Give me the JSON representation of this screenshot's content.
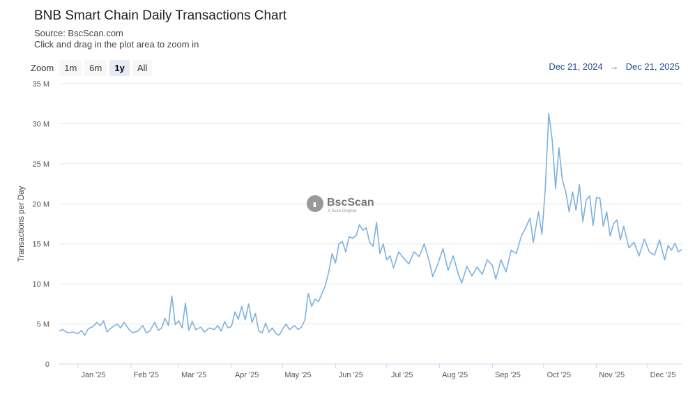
{
  "header": {
    "title": "BNB Smart Chain Daily Transactions Chart",
    "source": "Source: BscScan.com",
    "hint": "Click and drag in the plot area to zoom in"
  },
  "zoom": {
    "label": "Zoom",
    "buttons": [
      "1m",
      "6m",
      "1y",
      "All"
    ],
    "active": "1y"
  },
  "range": {
    "from": "Dec 21, 2024",
    "arrow": "→",
    "to": "Dec 21, 2025"
  },
  "watermark": {
    "name": "BscScan",
    "tagline": "A Scan Original"
  },
  "colors": {
    "line": "#7cb1e0",
    "grid": "#e6e6e6",
    "axis": "#ccd6eb",
    "range_text": "#1f4b8f"
  },
  "chart_data": {
    "type": "line",
    "title": "BNB Smart Chain Daily Transactions Chart",
    "xlabel": "",
    "ylabel": "Transactions per Day",
    "ylim": [
      0,
      35000000
    ],
    "x_range": [
      "2024-12-21",
      "2025-12-21"
    ],
    "grid": true,
    "legend": "none",
    "yticks": [
      {
        "value": 0,
        "label": "0"
      },
      {
        "value": 5000000,
        "label": "5 M"
      },
      {
        "value": 10000000,
        "label": "10 M"
      },
      {
        "value": 15000000,
        "label": "15 M"
      },
      {
        "value": 20000000,
        "label": "20 M"
      },
      {
        "value": 25000000,
        "label": "25 M"
      },
      {
        "value": 30000000,
        "label": "30 M"
      },
      {
        "value": 35000000,
        "label": "35 M"
      }
    ],
    "xticks": [
      {
        "date": "2025-01-01",
        "label": "Jan '25"
      },
      {
        "date": "2025-02-01",
        "label": "Feb '25"
      },
      {
        "date": "2025-03-01",
        "label": "Mar '25"
      },
      {
        "date": "2025-04-01",
        "label": "Apr '25"
      },
      {
        "date": "2025-05-01",
        "label": "May '25"
      },
      {
        "date": "2025-06-01",
        "label": "Jun '25"
      },
      {
        "date": "2025-07-01",
        "label": "Jul '25"
      },
      {
        "date": "2025-08-01",
        "label": "Aug '25"
      },
      {
        "date": "2025-09-01",
        "label": "Sep '25"
      },
      {
        "date": "2025-10-01",
        "label": "Oct '25"
      },
      {
        "date": "2025-11-01",
        "label": "Nov '25"
      },
      {
        "date": "2025-12-01",
        "label": "Dec '25"
      }
    ],
    "series": [
      {
        "values": [
          [
            "2024-12-21",
            4100000
          ],
          [
            "2024-12-23",
            4300000
          ],
          [
            "2024-12-26",
            3900000
          ],
          [
            "2024-12-29",
            4000000
          ],
          [
            "2025-01-01",
            3800000
          ],
          [
            "2025-01-03",
            4200000
          ],
          [
            "2025-01-05",
            3600000
          ],
          [
            "2025-01-07",
            4400000
          ],
          [
            "2025-01-10",
            4700000
          ],
          [
            "2025-01-12",
            5200000
          ],
          [
            "2025-01-14",
            4800000
          ],
          [
            "2025-01-16",
            5400000
          ],
          [
            "2025-01-18",
            4000000
          ],
          [
            "2025-01-21",
            4600000
          ],
          [
            "2025-01-24",
            5000000
          ],
          [
            "2025-01-26",
            4500000
          ],
          [
            "2025-01-28",
            5200000
          ],
          [
            "2025-01-31",
            4300000
          ],
          [
            "2025-02-02",
            3900000
          ],
          [
            "2025-02-05",
            4100000
          ],
          [
            "2025-02-08",
            4800000
          ],
          [
            "2025-02-10",
            3900000
          ],
          [
            "2025-02-12",
            4100000
          ],
          [
            "2025-02-15",
            5200000
          ],
          [
            "2025-02-17",
            4200000
          ],
          [
            "2025-02-19",
            4500000
          ],
          [
            "2025-02-21",
            5700000
          ],
          [
            "2025-02-23",
            4800000
          ],
          [
            "2025-02-25",
            8500000
          ],
          [
            "2025-02-27",
            4900000
          ],
          [
            "2025-03-01",
            5400000
          ],
          [
            "2025-03-03",
            4500000
          ],
          [
            "2025-03-05",
            7600000
          ],
          [
            "2025-03-07",
            4200000
          ],
          [
            "2025-03-09",
            5300000
          ],
          [
            "2025-03-11",
            4300000
          ],
          [
            "2025-03-14",
            4600000
          ],
          [
            "2025-03-16",
            4000000
          ],
          [
            "2025-03-19",
            4500000
          ],
          [
            "2025-03-22",
            4300000
          ],
          [
            "2025-03-24",
            4800000
          ],
          [
            "2025-03-26",
            4100000
          ],
          [
            "2025-03-28",
            5300000
          ],
          [
            "2025-03-30",
            4500000
          ],
          [
            "2025-04-01",
            4700000
          ],
          [
            "2025-04-03",
            6500000
          ],
          [
            "2025-04-05",
            5600000
          ],
          [
            "2025-04-07",
            7200000
          ],
          [
            "2025-04-09",
            5500000
          ],
          [
            "2025-04-11",
            7500000
          ],
          [
            "2025-04-13",
            5200000
          ],
          [
            "2025-04-15",
            6300000
          ],
          [
            "2025-04-17",
            4100000
          ],
          [
            "2025-04-19",
            3900000
          ],
          [
            "2025-04-21",
            5100000
          ],
          [
            "2025-04-23",
            4000000
          ],
          [
            "2025-04-25",
            4500000
          ],
          [
            "2025-04-27",
            3800000
          ],
          [
            "2025-04-29",
            3600000
          ],
          [
            "2025-05-01",
            4400000
          ],
          [
            "2025-05-03",
            5000000
          ],
          [
            "2025-05-05",
            4300000
          ],
          [
            "2025-05-08",
            4800000
          ],
          [
            "2025-05-10",
            4300000
          ],
          [
            "2025-05-12",
            4600000
          ],
          [
            "2025-05-14",
            5500000
          ],
          [
            "2025-05-16",
            8800000
          ],
          [
            "2025-05-18",
            7200000
          ],
          [
            "2025-05-20",
            8100000
          ],
          [
            "2025-05-22",
            7800000
          ],
          [
            "2025-05-24",
            8800000
          ],
          [
            "2025-05-26",
            9800000
          ],
          [
            "2025-05-28",
            11500000
          ],
          [
            "2025-05-30",
            13800000
          ],
          [
            "2025-06-01",
            12600000
          ],
          [
            "2025-06-03",
            15000000
          ],
          [
            "2025-06-05",
            15300000
          ],
          [
            "2025-06-07",
            14000000
          ],
          [
            "2025-06-09",
            15900000
          ],
          [
            "2025-06-11",
            15700000
          ],
          [
            "2025-06-13",
            16000000
          ],
          [
            "2025-06-15",
            17400000
          ],
          [
            "2025-06-17",
            16700000
          ],
          [
            "2025-06-19",
            17000000
          ],
          [
            "2025-06-21",
            15200000
          ],
          [
            "2025-06-23",
            14700000
          ],
          [
            "2025-06-25",
            17700000
          ],
          [
            "2025-06-27",
            13800000
          ],
          [
            "2025-06-29",
            15000000
          ],
          [
            "2025-07-01",
            13000000
          ],
          [
            "2025-07-03",
            13500000
          ],
          [
            "2025-07-05",
            12000000
          ],
          [
            "2025-07-08",
            14000000
          ],
          [
            "2025-07-11",
            13200000
          ],
          [
            "2025-07-14",
            12500000
          ],
          [
            "2025-07-17",
            14000000
          ],
          [
            "2025-07-20",
            13400000
          ],
          [
            "2025-07-23",
            15000000
          ],
          [
            "2025-07-26",
            12800000
          ],
          [
            "2025-07-28",
            10900000
          ],
          [
            "2025-07-31",
            12500000
          ],
          [
            "2025-08-03",
            14400000
          ],
          [
            "2025-08-06",
            11700000
          ],
          [
            "2025-08-09",
            13500000
          ],
          [
            "2025-08-12",
            11200000
          ],
          [
            "2025-08-14",
            10100000
          ],
          [
            "2025-08-17",
            12200000
          ],
          [
            "2025-08-20",
            11000000
          ],
          [
            "2025-08-23",
            12100000
          ],
          [
            "2025-08-26",
            11200000
          ],
          [
            "2025-08-29",
            13000000
          ],
          [
            "2025-09-01",
            12300000
          ],
          [
            "2025-09-03",
            10600000
          ],
          [
            "2025-09-06",
            13000000
          ],
          [
            "2025-09-09",
            11500000
          ],
          [
            "2025-09-12",
            14200000
          ],
          [
            "2025-09-15",
            13800000
          ],
          [
            "2025-09-18",
            16000000
          ],
          [
            "2025-09-20",
            16800000
          ],
          [
            "2025-09-23",
            18200000
          ],
          [
            "2025-09-25",
            15200000
          ],
          [
            "2025-09-28",
            19000000
          ],
          [
            "2025-09-30",
            16200000
          ],
          [
            "2025-10-02",
            22000000
          ],
          [
            "2025-10-04",
            31300000
          ],
          [
            "2025-10-06",
            28000000
          ],
          [
            "2025-10-08",
            21900000
          ],
          [
            "2025-10-10",
            27000000
          ],
          [
            "2025-10-12",
            23000000
          ],
          [
            "2025-10-14",
            21500000
          ],
          [
            "2025-10-16",
            19000000
          ],
          [
            "2025-10-18",
            21500000
          ],
          [
            "2025-10-20",
            19200000
          ],
          [
            "2025-10-22",
            22400000
          ],
          [
            "2025-10-24",
            17800000
          ],
          [
            "2025-10-26",
            20500000
          ],
          [
            "2025-10-28",
            21000000
          ],
          [
            "2025-10-30",
            17300000
          ],
          [
            "2025-11-01",
            20800000
          ],
          [
            "2025-11-03",
            20700000
          ],
          [
            "2025-11-05",
            17200000
          ],
          [
            "2025-11-07",
            19000000
          ],
          [
            "2025-11-09",
            16000000
          ],
          [
            "2025-11-11",
            17500000
          ],
          [
            "2025-11-13",
            18000000
          ],
          [
            "2025-11-15",
            15500000
          ],
          [
            "2025-11-17",
            17200000
          ],
          [
            "2025-11-20",
            14500000
          ],
          [
            "2025-11-23",
            15200000
          ],
          [
            "2025-11-26",
            13500000
          ],
          [
            "2025-11-29",
            15600000
          ],
          [
            "2025-12-02",
            14000000
          ],
          [
            "2025-12-05",
            13600000
          ],
          [
            "2025-12-08",
            15500000
          ],
          [
            "2025-12-11",
            13000000
          ],
          [
            "2025-12-13",
            14800000
          ],
          [
            "2025-12-15",
            14200000
          ],
          [
            "2025-12-17",
            15100000
          ],
          [
            "2025-12-19",
            14000000
          ],
          [
            "2025-12-21",
            14300000
          ]
        ]
      }
    ]
  }
}
